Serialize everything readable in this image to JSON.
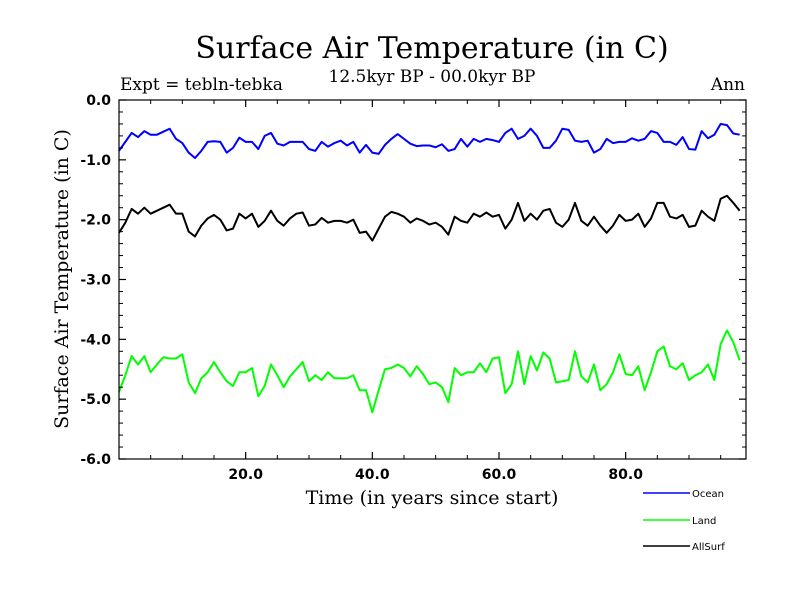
{
  "chart_data": {
    "type": "line",
    "title": "Surface Air Temperature (in C)",
    "subtitle": "12.5kyr BP - 00.0kyr BP",
    "left_annotation": "Expt = tebln-tebka",
    "right_annotation": "Ann",
    "xlabel": "Time (in years since start)",
    "ylabel": "Surface Air Temperature (in C)",
    "xlim": [
      0,
      99
    ],
    "ylim": [
      -6.0,
      0.0
    ],
    "xticks": [
      20,
      40,
      60,
      80
    ],
    "xtick_labels": [
      "20.0",
      "40.0",
      "60.0",
      "80.0"
    ],
    "yticks": [
      0,
      -1,
      -2,
      -3,
      -4,
      -5,
      -6
    ],
    "ytick_labels": [
      "0.0",
      "-1.0",
      "-2.0",
      "-3.0",
      "-4.0",
      "-5.0",
      "-6.0"
    ],
    "grid": false,
    "legend_position": "bottom-right",
    "series": [
      {
        "name": "Ocean",
        "color": "#0000ff",
        "values": [
          -0.85,
          -0.7,
          -0.55,
          -0.62,
          -0.52,
          -0.58,
          -0.58,
          -0.53,
          -0.48,
          -0.65,
          -0.72,
          -0.88,
          -0.97,
          -0.85,
          -0.7,
          -0.69,
          -0.7,
          -0.88,
          -0.8,
          -0.63,
          -0.7,
          -0.7,
          -0.82,
          -0.6,
          -0.55,
          -0.73,
          -0.76,
          -0.7,
          -0.7,
          -0.7,
          -0.82,
          -0.85,
          -0.7,
          -0.78,
          -0.72,
          -0.68,
          -0.76,
          -0.7,
          -0.88,
          -0.75,
          -0.88,
          -0.9,
          -0.75,
          -0.65,
          -0.57,
          -0.65,
          -0.73,
          -0.77,
          -0.76,
          -0.76,
          -0.79,
          -0.74,
          -0.85,
          -0.82,
          -0.65,
          -0.78,
          -0.65,
          -0.7,
          -0.65,
          -0.67,
          -0.7,
          -0.55,
          -0.48,
          -0.65,
          -0.6,
          -0.48,
          -0.6,
          -0.8,
          -0.8,
          -0.68,
          -0.48,
          -0.5,
          -0.68,
          -0.7,
          -0.68,
          -0.88,
          -0.82,
          -0.65,
          -0.72,
          -0.7,
          -0.7,
          -0.64,
          -0.68,
          -0.65,
          -0.52,
          -0.55,
          -0.7,
          -0.7,
          -0.75,
          -0.62,
          -0.82,
          -0.83,
          -0.52,
          -0.64,
          -0.58,
          -0.4,
          -0.42,
          -0.56,
          -0.58
        ]
      },
      {
        "name": "Land",
        "color": "#00ff00",
        "values": [
          -4.88,
          -4.6,
          -4.28,
          -4.42,
          -4.28,
          -4.55,
          -4.42,
          -4.3,
          -4.32,
          -4.32,
          -4.25,
          -4.72,
          -4.9,
          -4.65,
          -4.55,
          -4.38,
          -4.55,
          -4.7,
          -4.78,
          -4.55,
          -4.55,
          -4.48,
          -4.95,
          -4.78,
          -4.42,
          -4.6,
          -4.8,
          -4.62,
          -4.5,
          -4.38,
          -4.7,
          -4.6,
          -4.68,
          -4.55,
          -4.65,
          -4.65,
          -4.65,
          -4.6,
          -4.85,
          -4.85,
          -5.22,
          -4.85,
          -4.5,
          -4.48,
          -4.42,
          -4.48,
          -4.62,
          -4.45,
          -4.58,
          -4.75,
          -4.72,
          -4.8,
          -5.05,
          -4.48,
          -4.6,
          -4.55,
          -4.55,
          -4.4,
          -4.55,
          -4.32,
          -4.3,
          -4.9,
          -4.75,
          -4.2,
          -4.75,
          -4.28,
          -4.52,
          -4.22,
          -4.32,
          -4.72,
          -4.7,
          -4.68,
          -4.2,
          -4.62,
          -4.72,
          -4.42,
          -4.85,
          -4.75,
          -4.55,
          -4.25,
          -4.58,
          -4.6,
          -4.45,
          -4.85,
          -4.55,
          -4.2,
          -4.12,
          -4.45,
          -4.5,
          -4.4,
          -4.68,
          -4.6,
          -4.55,
          -4.42,
          -4.68,
          -4.08,
          -3.85,
          -4.05,
          -4.35
        ]
      },
      {
        "name": "AllSurf",
        "color": "#000000",
        "values": [
          -2.22,
          -2.05,
          -1.82,
          -1.9,
          -1.8,
          -1.9,
          -1.85,
          -1.8,
          -1.75,
          -1.9,
          -1.9,
          -2.2,
          -2.28,
          -2.1,
          -1.98,
          -1.92,
          -2.0,
          -2.18,
          -2.15,
          -1.9,
          -1.98,
          -1.9,
          -2.12,
          -2.02,
          -1.85,
          -2.02,
          -2.1,
          -1.98,
          -1.9,
          -1.88,
          -2.1,
          -2.08,
          -1.97,
          -2.05,
          -2.02,
          -2.02,
          -2.05,
          -2.0,
          -2.22,
          -2.2,
          -2.35,
          -2.15,
          -1.95,
          -1.87,
          -1.9,
          -1.95,
          -2.05,
          -1.98,
          -2.02,
          -2.08,
          -2.05,
          -2.12,
          -2.25,
          -1.95,
          -2.02,
          -2.05,
          -1.9,
          -1.95,
          -1.88,
          -1.95,
          -1.92,
          -2.15,
          -2.0,
          -1.72,
          -2.02,
          -1.9,
          -2.0,
          -1.85,
          -1.82,
          -2.05,
          -2.12,
          -2.0,
          -1.72,
          -2.02,
          -2.1,
          -1.95,
          -2.1,
          -2.22,
          -2.1,
          -1.92,
          -2.02,
          -2.0,
          -1.9,
          -2.12,
          -1.98,
          -1.72,
          -1.72,
          -1.95,
          -1.98,
          -1.92,
          -2.12,
          -2.1,
          -1.85,
          -1.95,
          -2.02,
          -1.65,
          -1.6,
          -1.72,
          -1.85
        ]
      }
    ]
  }
}
